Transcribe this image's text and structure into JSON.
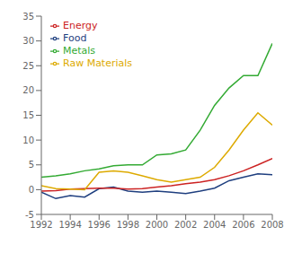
{
  "chart_data": {
    "type": "line",
    "x": [
      1992,
      1993,
      1994,
      1995,
      1996,
      1997,
      1998,
      1999,
      2000,
      2001,
      2002,
      2003,
      2004,
      2005,
      2006,
      2007,
      2008
    ],
    "series": [
      {
        "name": "Food",
        "color": "#1f3f7f",
        "values": [
          -0.5,
          -1.8,
          -1.2,
          -1.5,
          0.2,
          0.5,
          -0.3,
          -0.5,
          -0.3,
          -0.5,
          -0.8,
          -0.3,
          0.3,
          1.8,
          2.5,
          3.2,
          3.0
        ]
      },
      {
        "name": "Energy",
        "color": "#cc2222",
        "values": [
          -0.3,
          -0.2,
          0.1,
          0.2,
          0.3,
          0.3,
          0.1,
          0.2,
          0.5,
          0.8,
          1.2,
          1.5,
          2.0,
          2.8,
          3.8,
          5.0,
          6.3
        ]
      },
      {
        "name": "Metals",
        "color": "#33aa33",
        "values": [
          2.5,
          2.8,
          3.2,
          3.8,
          4.2,
          4.8,
          5.0,
          5.0,
          7.0,
          7.2,
          8.0,
          12.0,
          17.0,
          20.5,
          23.0,
          23.0,
          29.5
        ]
      },
      {
        "name": "Raw Materials",
        "color": "#ddaa00",
        "values": [
          0.8,
          0.2,
          0.1,
          0.0,
          3.5,
          3.8,
          3.5,
          2.8,
          2.0,
          1.5,
          2.0,
          2.5,
          4.5,
          8.0,
          12.0,
          15.5,
          13.0
        ]
      }
    ],
    "xlim": [
      1992,
      2008
    ],
    "xticks": [
      1992,
      1994,
      1996,
      1998,
      2000,
      2002,
      2004,
      2006,
      2008
    ],
    "ylim": [
      -5,
      35
    ],
    "yticks": [
      -5,
      0,
      5,
      10,
      15,
      20,
      25,
      30,
      35
    ],
    "grid": false,
    "legend": "upper left"
  }
}
